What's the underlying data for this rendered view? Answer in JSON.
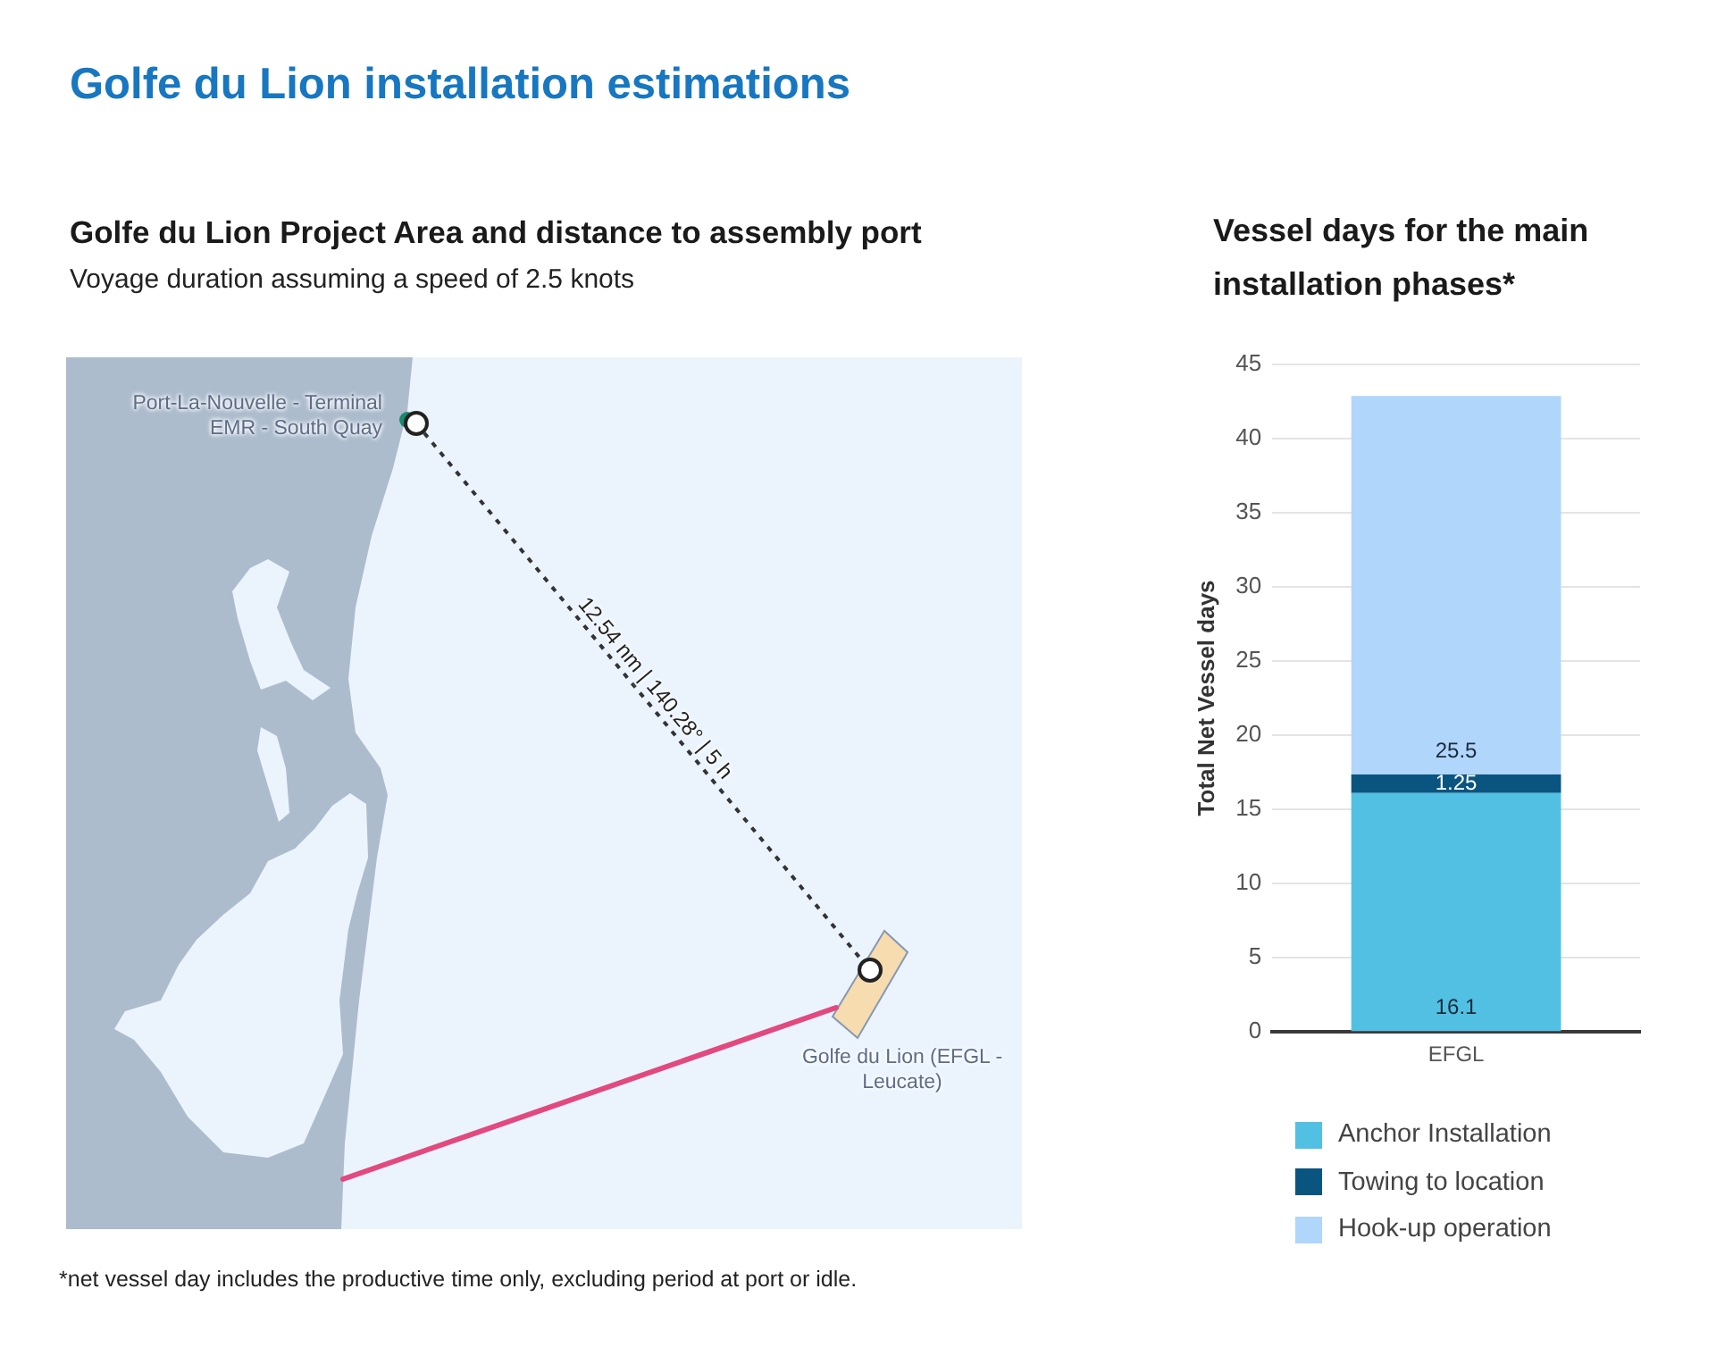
{
  "chart_data": [
    {
      "type": "other",
      "title": "Golfe du Lion installation estimations",
      "subtitle": "Golfe du Lion Project Area and distance to assembly port",
      "annotations": [
        "Voyage duration assuming a speed of 2.5 knots",
        "Port-La-Nouvelle - Terminal EMR - South Quay",
        "12.54 nm | 140.28° | 5 h",
        "Golfe du Lion (EFGL - Leucate)"
      ]
    },
    {
      "type": "bar",
      "title": "Vessel days for the main installation phases*",
      "ylabel": "Total Net Vessel days",
      "categories": [
        "EFGL"
      ],
      "stacked": true,
      "series": [
        {
          "name": "Anchor Installation",
          "color": "#52c0e3",
          "values": [
            16.1
          ]
        },
        {
          "name": "Towing to location",
          "color": "#0a5580",
          "values": [
            1.25
          ]
        },
        {
          "name": "Hook-up operation",
          "color": "#b0d6fb",
          "values": [
            25.5
          ]
        }
      ],
      "ylim": [
        0,
        45
      ],
      "yticks": [
        0,
        5,
        10,
        15,
        20,
        25,
        30,
        35,
        40,
        45
      ],
      "grid": "y",
      "legend": "bottom",
      "data_labels": true,
      "annotations": [
        "*net vessel day includes the productive time only, excluding period at port or idle."
      ]
    }
  ]
}
